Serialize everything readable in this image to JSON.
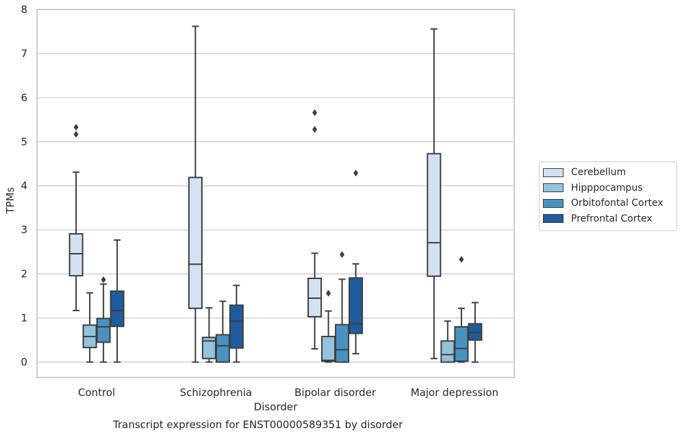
{
  "chart_data": {
    "type": "box",
    "title": "Transcript expression for ENST00000589351 by disorder",
    "xlabel": "Disorder",
    "ylabel": "TPMs",
    "ylim": [
      -0.35,
      8.0
    ],
    "yticks": [
      0,
      1,
      2,
      3,
      4,
      5,
      6,
      7,
      8
    ],
    "categories": [
      "Control",
      "Schizophrenia",
      "Bipolar disorder",
      "Major depression"
    ],
    "grid": true,
    "legend_position": "right",
    "series": [
      {
        "name": "Cerebellum",
        "color": "#d3e2f2",
        "boxes": [
          {
            "whislo": 1.17,
            "q1": 1.96,
            "med": 2.46,
            "q3": 2.91,
            "whishi": 4.31,
            "fliers": [
              5.17,
              5.33
            ]
          },
          {
            "whislo": 0.0,
            "q1": 1.22,
            "med": 2.22,
            "q3": 4.19,
            "whishi": 7.62,
            "fliers": []
          },
          {
            "whislo": 0.3,
            "q1": 1.03,
            "med": 1.45,
            "q3": 1.9,
            "whishi": 2.47,
            "fliers": [
              5.28,
              5.66
            ]
          },
          {
            "whislo": 0.08,
            "q1": 1.95,
            "med": 2.71,
            "q3": 4.73,
            "whishi": 7.56,
            "fliers": []
          }
        ]
      },
      {
        "name": "Hipppocampus",
        "color": "#94c3dc",
        "boxes": [
          {
            "whislo": 0.0,
            "q1": 0.33,
            "med": 0.58,
            "q3": 0.84,
            "whishi": 1.57,
            "fliers": []
          },
          {
            "whislo": 0.0,
            "q1": 0.08,
            "med": 0.48,
            "q3": 0.56,
            "whishi": 1.23,
            "fliers": []
          },
          {
            "whislo": 0.0,
            "q1": 0.02,
            "med": 0.04,
            "q3": 0.58,
            "whishi": 1.16,
            "fliers": [
              1.56
            ]
          },
          {
            "whislo": 0.0,
            "q1": 0.0,
            "med": 0.17,
            "q3": 0.48,
            "whishi": 0.93,
            "fliers": []
          }
        ]
      },
      {
        "name": "Orbitofontal Cortex",
        "color": "#4a91c2",
        "boxes": [
          {
            "whislo": 0.0,
            "q1": 0.45,
            "med": 0.8,
            "q3": 0.99,
            "whishi": 1.77,
            "fliers": [
              1.87
            ]
          },
          {
            "whislo": 0.0,
            "q1": 0.0,
            "med": 0.37,
            "q3": 0.62,
            "whishi": 1.38,
            "fliers": []
          },
          {
            "whislo": 0.0,
            "q1": 0.0,
            "med": 0.28,
            "q3": 0.85,
            "whishi": 1.88,
            "fliers": [
              2.44
            ]
          },
          {
            "whislo": 0.0,
            "q1": 0.02,
            "med": 0.31,
            "q3": 0.8,
            "whishi": 1.22,
            "fliers": [
              2.33
            ]
          }
        ]
      },
      {
        "name": "Prefrontal Cortex",
        "color": "#1f5c9f",
        "boxes": [
          {
            "whislo": 0.0,
            "q1": 0.81,
            "med": 1.17,
            "q3": 1.61,
            "whishi": 2.77,
            "fliers": []
          },
          {
            "whislo": 0.0,
            "q1": 0.32,
            "med": 0.93,
            "q3": 1.29,
            "whishi": 1.74,
            "fliers": []
          },
          {
            "whislo": 0.19,
            "q1": 0.65,
            "med": 0.87,
            "q3": 1.91,
            "whishi": 2.23,
            "fliers": [
              4.29
            ]
          },
          {
            "whislo": 0.0,
            "q1": 0.5,
            "med": 0.67,
            "q3": 0.87,
            "whishi": 1.35,
            "fliers": []
          }
        ]
      }
    ]
  }
}
